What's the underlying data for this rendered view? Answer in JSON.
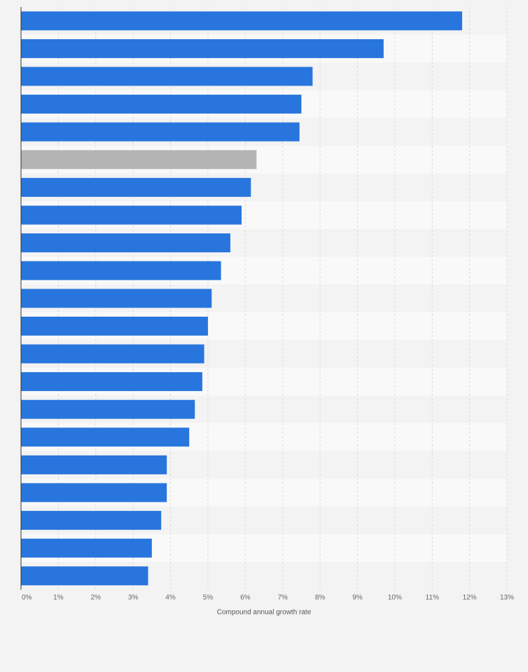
{
  "chart_data": {
    "type": "bar",
    "orientation": "horizontal",
    "title": "",
    "xlabel": "Compound annual growth rate",
    "ylabel": "",
    "xlim": [
      0,
      13
    ],
    "tick_labels": [
      "0%",
      "1%",
      "2%",
      "3%",
      "4%",
      "5%",
      "6%",
      "7%",
      "8%",
      "9%",
      "10%",
      "11%",
      "12%",
      "13%"
    ],
    "grid": true,
    "legend": "none",
    "values": [
      11.8,
      9.7,
      7.8,
      7.5,
      7.45,
      6.3,
      6.15,
      5.9,
      5.6,
      5.35,
      5.1,
      5.0,
      4.9,
      4.85,
      4.65,
      4.5,
      3.9,
      3.9,
      3.75,
      3.5,
      3.4
    ],
    "highlight_index": 5,
    "colors": {
      "bar": "#2876dd",
      "highlight": "#b4b4b4",
      "band_light": "#f9f9f9",
      "band_dark": "#f3f3f3",
      "grid": "#d9d9d9",
      "axis": "#333333"
    }
  }
}
